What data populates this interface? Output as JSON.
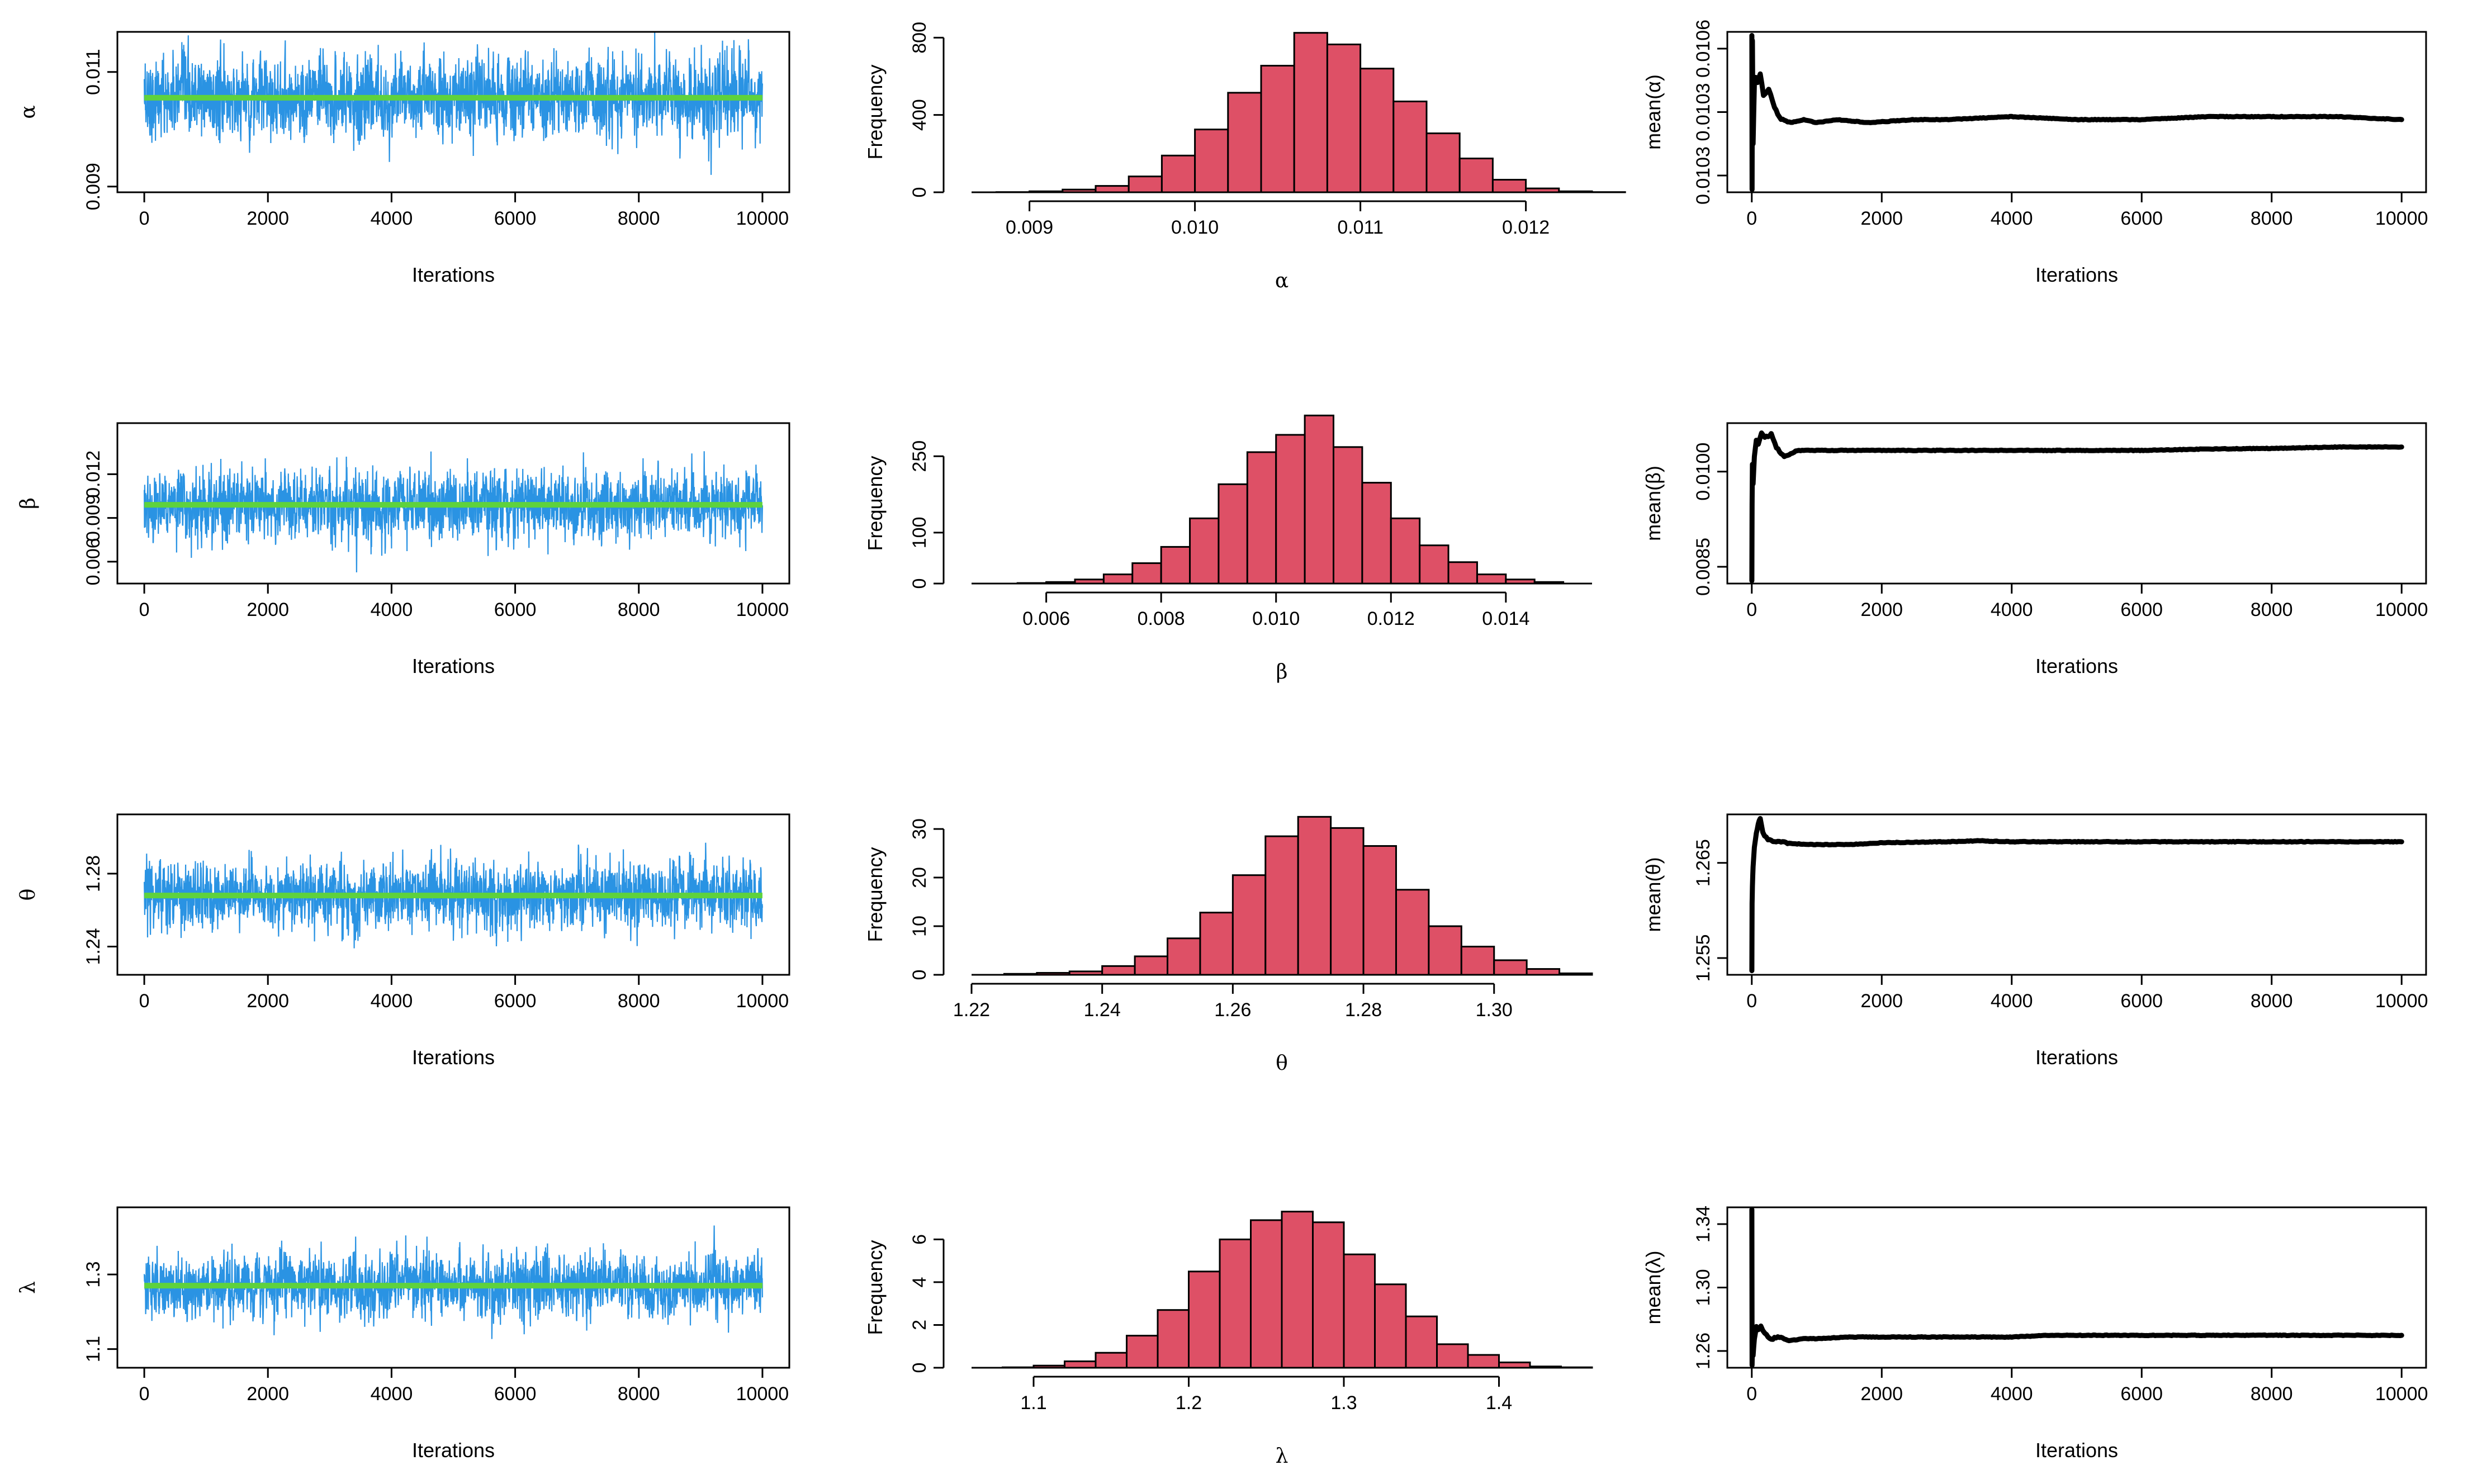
{
  "chart_data": {
    "type": "mcmc-diagnostics",
    "colors": {
      "trace": "#2a93e3",
      "trace_mean": "#5ed23d",
      "histogram": "#de5066",
      "ergodic": "#000000"
    },
    "parameters": [
      {
        "symbol": "α",
        "trace": {
          "type": "line",
          "xlabel": "Iterations",
          "ylabel": "α",
          "x_ticks": [
            "0",
            "2000",
            "4000",
            "6000",
            "8000",
            "10000"
          ],
          "y_ticks": [
            "0.009",
            "0.011"
          ],
          "xlim": [
            0,
            10000
          ],
          "ylim": [
            0.0089,
            0.0117
          ],
          "mean": 0.01055,
          "sd": 0.00045
        },
        "histogram": {
          "type": "bar",
          "xlabel": "α",
          "ylabel": "Frequency",
          "x_ticks": [
            "0.009",
            "0.010",
            "0.011",
            "0.012"
          ],
          "y_ticks": [
            "0",
            "400",
            "800"
          ],
          "xlim": [
            0.00865,
            0.0124
          ],
          "ylim": [
            0,
            830
          ],
          "bin_start": 0.0088,
          "bin_width": 0.0002,
          "counts": [
            1,
            5,
            14,
            33,
            82,
            190,
            325,
            515,
            655,
            825,
            765,
            640,
            470,
            305,
            175,
            65,
            20,
            5,
            1
          ]
        },
        "ergodic": {
          "type": "line",
          "xlabel": "Iterations",
          "ylabel": "mean(α)",
          "x_ticks": [
            "0",
            "2000",
            "4000",
            "6000",
            "8000",
            "10000"
          ],
          "y_ticks": [
            "0.0103",
            "0.0103",
            "0.0106"
          ],
          "xlim": [
            0,
            10000
          ],
          "ylim": [
            0.01024,
            0.01077
          ],
          "points": [
            [
              1,
              0.01076
            ],
            [
              5,
              0.01025
            ],
            [
              10,
              0.01074
            ],
            [
              20,
              0.0104
            ],
            [
              40,
              0.0106
            ],
            [
              60,
              0.01062
            ],
            [
              90,
              0.0106
            ],
            [
              130,
              0.01063
            ],
            [
              180,
              0.01056
            ],
            [
              260,
              0.01058
            ],
            [
              350,
              0.01052
            ],
            [
              450,
              0.01048
            ],
            [
              600,
              0.01047
            ],
            [
              800,
              0.01048
            ],
            [
              1000,
              0.01047
            ],
            [
              1300,
              0.01048
            ],
            [
              1800,
              0.01047
            ],
            [
              2500,
              0.01048
            ],
            [
              3000,
              0.01048
            ],
            [
              4000,
              0.01049
            ],
            [
              5000,
              0.01048
            ],
            [
              6000,
              0.01048
            ],
            [
              7000,
              0.01049
            ],
            [
              8000,
              0.01049
            ],
            [
              9000,
              0.01049
            ],
            [
              10000,
              0.01048
            ]
          ]
        }
      },
      {
        "symbol": "β",
        "trace": {
          "type": "line",
          "xlabel": "Iterations",
          "ylabel": "β",
          "x_ticks": [
            "0",
            "2000",
            "4000",
            "6000",
            "8000",
            "10000"
          ],
          "y_ticks": [
            "0.006",
            "0.009",
            "0.012"
          ],
          "xlim": [
            0,
            10000
          ],
          "ylim": [
            0.0045,
            0.0155
          ],
          "mean": 0.0099,
          "sd": 0.0015
        },
        "histogram": {
          "type": "bar",
          "xlabel": "β",
          "ylabel": "Frequency",
          "x_ticks": [
            "0.006",
            "0.008",
            "0.010",
            "0.012",
            "0.014"
          ],
          "y_ticks": [
            "0",
            "100",
            "250"
          ],
          "xlim": [
            0.0047,
            0.0155
          ],
          "ylim": [
            0,
            315
          ],
          "bin_start": 0.0055,
          "bin_width": 0.0005,
          "counts": [
            1,
            3,
            8,
            18,
            40,
            72,
            128,
            195,
            258,
            292,
            330,
            268,
            198,
            128,
            75,
            42,
            18,
            8,
            3
          ]
        },
        "ergodic": {
          "type": "line",
          "xlabel": "Iterations",
          "ylabel": "mean(β)",
          "x_ticks": [
            "0",
            "2000",
            "4000",
            "6000",
            "8000",
            "10000"
          ],
          "y_ticks": [
            "0.0085",
            "0.0100"
          ],
          "xlim": [
            0,
            10000
          ],
          "ylim": [
            0.00805,
            0.0104
          ],
          "points": [
            [
              1,
              0.0081
            ],
            [
              5,
              0.0092
            ],
            [
              10,
              0.0098
            ],
            [
              20,
              0.0095
            ],
            [
              40,
              0.0099
            ],
            [
              70,
              0.01015
            ],
            [
              100,
              0.0101
            ],
            [
              150,
              0.01025
            ],
            [
              200,
              0.0102
            ],
            [
              250,
              0.0102
            ],
            [
              300,
              0.01025
            ],
            [
              380,
              0.01005
            ],
            [
              500,
              0.0099
            ],
            [
              700,
              0.01
            ],
            [
              1000,
              0.01
            ],
            [
              1500,
              0.01
            ],
            [
              2000,
              0.01
            ],
            [
              3000,
              0.01
            ],
            [
              4000,
              0.01
            ],
            [
              5000,
              0.01
            ],
            [
              6000,
              0.01
            ],
            [
              7000,
              0.01002
            ],
            [
              8000,
              0.01003
            ],
            [
              9000,
              0.01005
            ],
            [
              10000,
              0.01005
            ]
          ]
        }
      },
      {
        "symbol": "θ",
        "trace": {
          "type": "line",
          "xlabel": "Iterations",
          "ylabel": "θ",
          "x_ticks": [
            "0",
            "2000",
            "4000",
            "6000",
            "8000",
            "10000"
          ],
          "y_ticks": [
            "1.24",
            "1.28"
          ],
          "xlim": [
            0,
            10000
          ],
          "ylim": [
            1.2245,
            1.3125
          ],
          "mean": 1.268,
          "sd": 0.012
        },
        "histogram": {
          "type": "bar",
          "xlabel": "θ",
          "ylabel": "Frequency",
          "x_ticks": [
            "1.22",
            "1.24",
            "1.26",
            "1.28",
            "1.30"
          ],
          "y_ticks": [
            "0",
            "10",
            "20",
            "30"
          ],
          "xlim": [
            1.22,
            1.315
          ],
          "ylim": [
            0,
            33
          ],
          "bin_start": 1.225,
          "bin_width": 0.005,
          "counts": [
            0.2,
            0.4,
            0.7,
            1.8,
            3.8,
            7.5,
            12.8,
            20.5,
            28.5,
            32.5,
            30.2,
            26.5,
            17.5,
            10.0,
            5.8,
            3.0,
            1.2,
            0.3
          ]
        },
        "ergodic": {
          "type": "line",
          "xlabel": "Iterations",
          "ylabel": "mean(θ)",
          "x_ticks": [
            "0",
            "2000",
            "4000",
            "6000",
            "8000",
            "10000"
          ],
          "y_ticks": [
            "1.255",
            "1.265"
          ],
          "xlim": [
            0,
            10000
          ],
          "ylim": [
            1.2545,
            1.2715
          ],
          "points": [
            [
              1,
              1.255
            ],
            [
              5,
              1.262
            ],
            [
              10,
              1.264
            ],
            [
              20,
              1.266
            ],
            [
              40,
              1.268
            ],
            [
              70,
              1.2695
            ],
            [
              100,
              1.2705
            ],
            [
              130,
              1.271
            ],
            [
              170,
              1.2695
            ],
            [
              250,
              1.2688
            ],
            [
              400,
              1.2686
            ],
            [
              600,
              1.2684
            ],
            [
              1000,
              1.2683
            ],
            [
              1500,
              1.2683
            ],
            [
              2000,
              1.2685
            ],
            [
              3000,
              1.2686
            ],
            [
              3500,
              1.2687
            ],
            [
              4000,
              1.2686
            ],
            [
              5000,
              1.2686
            ],
            [
              6000,
              1.2686
            ],
            [
              7000,
              1.2686
            ],
            [
              8000,
              1.2686
            ],
            [
              9000,
              1.2686
            ],
            [
              10000,
              1.2686
            ]
          ]
        }
      },
      {
        "symbol": "λ",
        "trace": {
          "type": "line",
          "xlabel": "Iterations",
          "ylabel": "λ",
          "x_ticks": [
            "0",
            "2000",
            "4000",
            "6000",
            "8000",
            "10000"
          ],
          "y_ticks": [
            "1.1",
            "1.3"
          ],
          "xlim": [
            0,
            10000
          ],
          "ylim": [
            1.05,
            1.48
          ],
          "mean": 1.27,
          "sd": 0.055
        },
        "histogram": {
          "type": "bar",
          "xlabel": "λ",
          "ylabel": "Frequency",
          "x_ticks": [
            "1.1",
            "1.2",
            "1.3",
            "1.4"
          ],
          "y_ticks": [
            "0",
            "2",
            "4",
            "6"
          ],
          "xlim": [
            1.06,
            1.46
          ],
          "ylim": [
            0,
            7.5
          ],
          "bin_start": 1.08,
          "bin_width": 0.02,
          "counts": [
            0.02,
            0.1,
            0.3,
            0.7,
            1.5,
            2.7,
            4.5,
            6.0,
            6.9,
            7.3,
            6.8,
            5.3,
            3.9,
            2.4,
            1.1,
            0.6,
            0.25,
            0.06,
            0.02
          ]
        },
        "ergodic": {
          "type": "line",
          "xlabel": "Iterations",
          "ylabel": "mean(λ)",
          "x_ticks": [
            "0",
            "2000",
            "4000",
            "6000",
            "8000",
            "10000"
          ],
          "y_ticks": [
            "1.26",
            "1.30",
            "1.34"
          ],
          "xlim": [
            0,
            10000
          ],
          "ylim": [
            1.248,
            1.342
          ],
          "points": [
            [
              1,
              1.341
            ],
            [
              5,
              1.25
            ],
            [
              10,
              1.26
            ],
            [
              20,
              1.255
            ],
            [
              40,
              1.265
            ],
            [
              70,
              1.272
            ],
            [
              100,
              1.27
            ],
            [
              140,
              1.272
            ],
            [
              200,
              1.268
            ],
            [
              300,
              1.265
            ],
            [
              450,
              1.266
            ],
            [
              600,
              1.264
            ],
            [
              800,
              1.265
            ],
            [
              1000,
              1.265
            ],
            [
              1500,
              1.266
            ],
            [
              2000,
              1.266
            ],
            [
              3000,
              1.266
            ],
            [
              4000,
              1.266
            ],
            [
              4600,
              1.267
            ],
            [
              5000,
              1.267
            ],
            [
              6000,
              1.267
            ],
            [
              7000,
              1.267
            ],
            [
              8000,
              1.267
            ],
            [
              9000,
              1.267
            ],
            [
              10000,
              1.267
            ]
          ]
        }
      }
    ]
  }
}
